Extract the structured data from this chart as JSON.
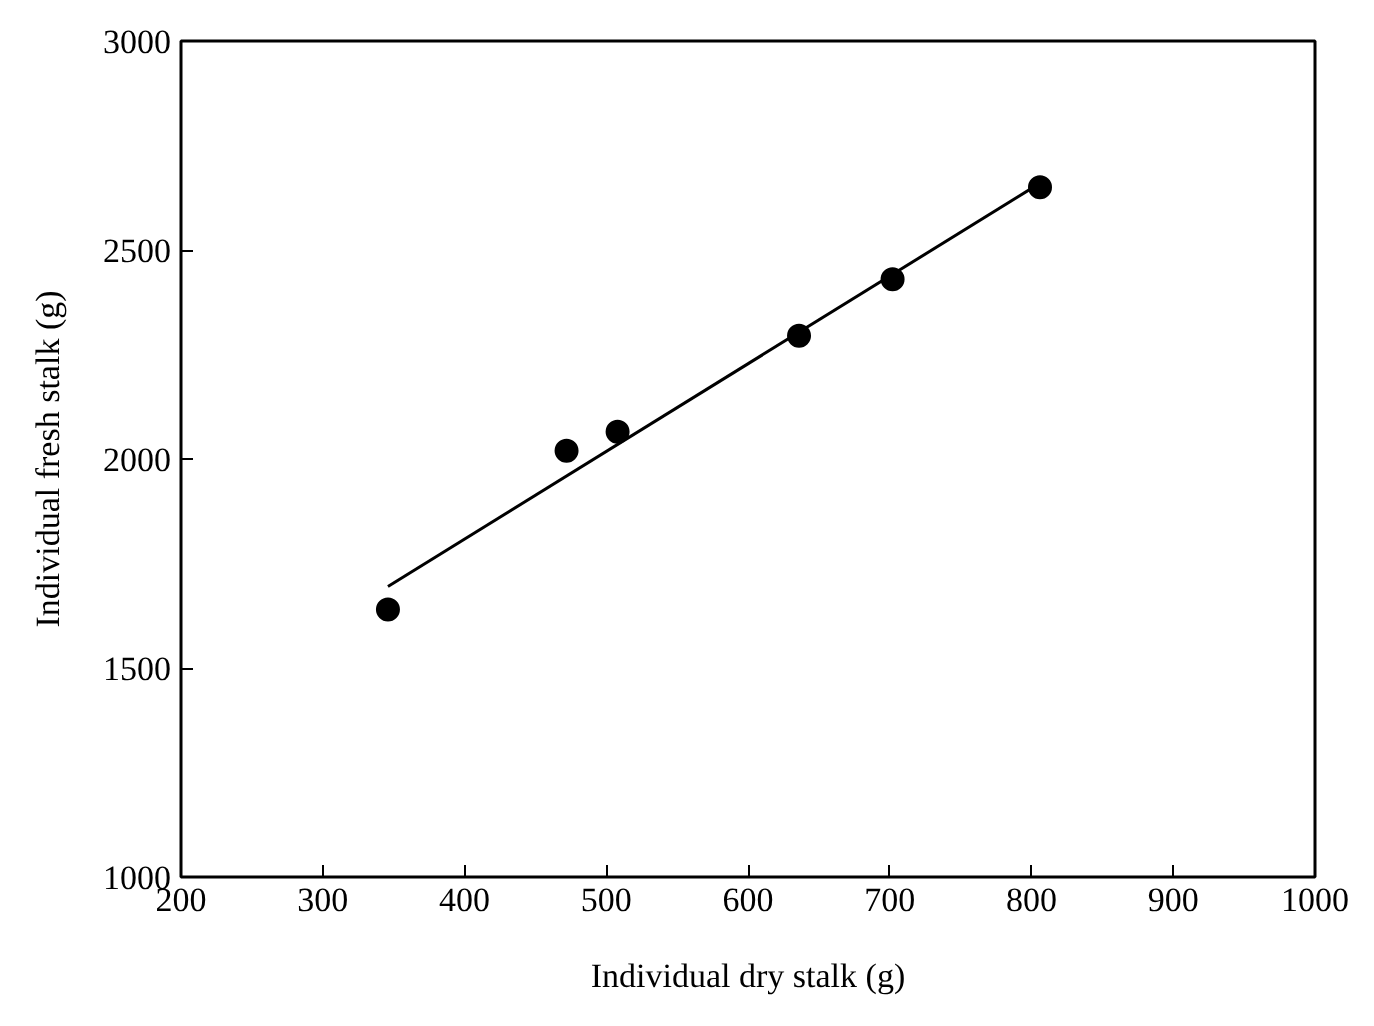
{
  "chart_data": {
    "type": "scatter",
    "xlabel": "Individual dry stalk (g)",
    "ylabel": "Individual fresh stalk (g)",
    "xlim": [
      200,
      1000
    ],
    "ylim": [
      1000,
      3000
    ],
    "xticks": [
      200,
      300,
      400,
      500,
      600,
      700,
      800,
      900,
      1000
    ],
    "yticks": [
      1000,
      1500,
      2000,
      2500,
      3000
    ],
    "grid": false,
    "marker": "circle",
    "series": [
      {
        "color": "#000000",
        "x": [
          346,
          472,
          508,
          636,
          702,
          806
        ],
        "values": [
          1640,
          2020,
          2065,
          2295,
          2430,
          2650
        ]
      },
      {
        "type": "line",
        "color": "#000000",
        "line_style": "solid",
        "marker": "none",
        "x": [
          346,
          806
        ],
        "values": [
          1695,
          2660
        ]
      }
    ]
  }
}
